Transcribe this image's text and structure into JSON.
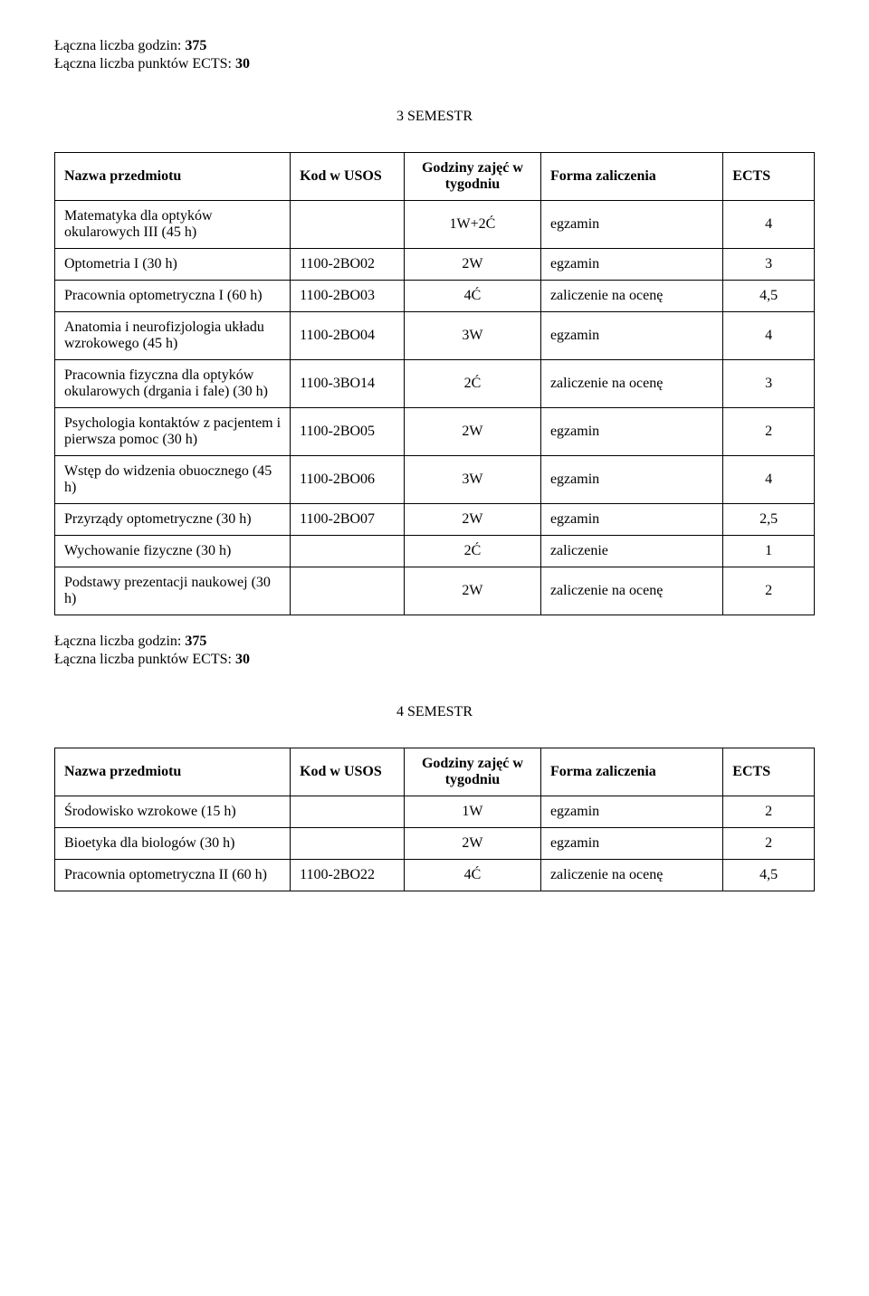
{
  "summary1": {
    "hours_label": "Łączna liczba godzin:",
    "hours_value": "375",
    "ects_label": "Łączna liczba punktów ECTS:",
    "ects_value": "30"
  },
  "semester3": {
    "heading": "3 SEMESTR",
    "headers": {
      "name": "Nazwa przedmiotu",
      "kod": "Kod w USOS",
      "godz": "Godziny zajęć w tygodniu",
      "forma": "Forma zaliczenia",
      "ects": "ECTS"
    },
    "rows": [
      {
        "name": "Matematyka dla optyków okularowych III (45 h)",
        "kod": "",
        "godz": "1W+2Ć",
        "forma": "egzamin",
        "ects": "4"
      },
      {
        "name": "Optometria I (30 h)",
        "kod": "1100-2BO02",
        "godz": "2W",
        "forma": "egzamin",
        "ects": "3"
      },
      {
        "name": "Pracownia optometryczna I (60 h)",
        "kod": "1100-2BO03",
        "godz": "4Ć",
        "forma": "zaliczenie na ocenę",
        "ects": "4,5"
      },
      {
        "name": "Anatomia i neurofizjologia układu wzrokowego (45 h)",
        "kod": "1100-2BO04",
        "godz": "3W",
        "forma": "egzamin",
        "ects": "4"
      },
      {
        "name": "Pracownia fizyczna dla optyków okularowych (drgania i fale) (30 h)",
        "kod": "1100-3BO14",
        "godz": "2Ć",
        "forma": "zaliczenie na ocenę",
        "ects": "3"
      },
      {
        "name": "Psychologia kontaktów z pacjentem i pierwsza pomoc (30 h)",
        "kod": "1100-2BO05",
        "godz": "2W",
        "forma": "egzamin",
        "ects": "2"
      },
      {
        "name": "Wstęp do widzenia obuocznego (45 h)",
        "kod": "1100-2BO06",
        "godz": "3W",
        "forma": "egzamin",
        "ects": "4"
      },
      {
        "name": "Przyrządy optometryczne (30 h)",
        "kod": "1100-2BO07",
        "godz": "2W",
        "forma": "egzamin",
        "ects": "2,5"
      },
      {
        "name": "Wychowanie fizyczne (30 h)",
        "kod": "",
        "godz": "2Ć",
        "forma": "zaliczenie",
        "ects": "1"
      },
      {
        "name": "Podstawy prezentacji naukowej (30 h)",
        "kod": "",
        "godz": "2W",
        "forma": "zaliczenie na ocenę",
        "ects": "2"
      }
    ]
  },
  "summary2": {
    "hours_label": "Łączna liczba godzin:",
    "hours_value": "375",
    "ects_label": "Łączna liczba punktów ECTS:",
    "ects_value": "30"
  },
  "semester4": {
    "heading": "4 SEMESTR",
    "headers": {
      "name": "Nazwa przedmiotu",
      "kod": "Kod w USOS",
      "godz": "Godziny zajęć w tygodniu",
      "forma": "Forma zaliczenia",
      "ects": "ECTS"
    },
    "rows": [
      {
        "name": "Środowisko wzrokowe (15 h)",
        "kod": "",
        "godz": "1W",
        "forma": "egzamin",
        "ects": "2"
      },
      {
        "name": "Bioetyka dla biologów (30 h)",
        "kod": "",
        "godz": "2W",
        "forma": "egzamin",
        "ects": "2"
      },
      {
        "name": "Pracownia optometryczna II (60 h)",
        "kod": "1100-2BO22",
        "godz": "4Ć",
        "forma": "zaliczenie na ocenę",
        "ects": "4,5"
      }
    ]
  }
}
